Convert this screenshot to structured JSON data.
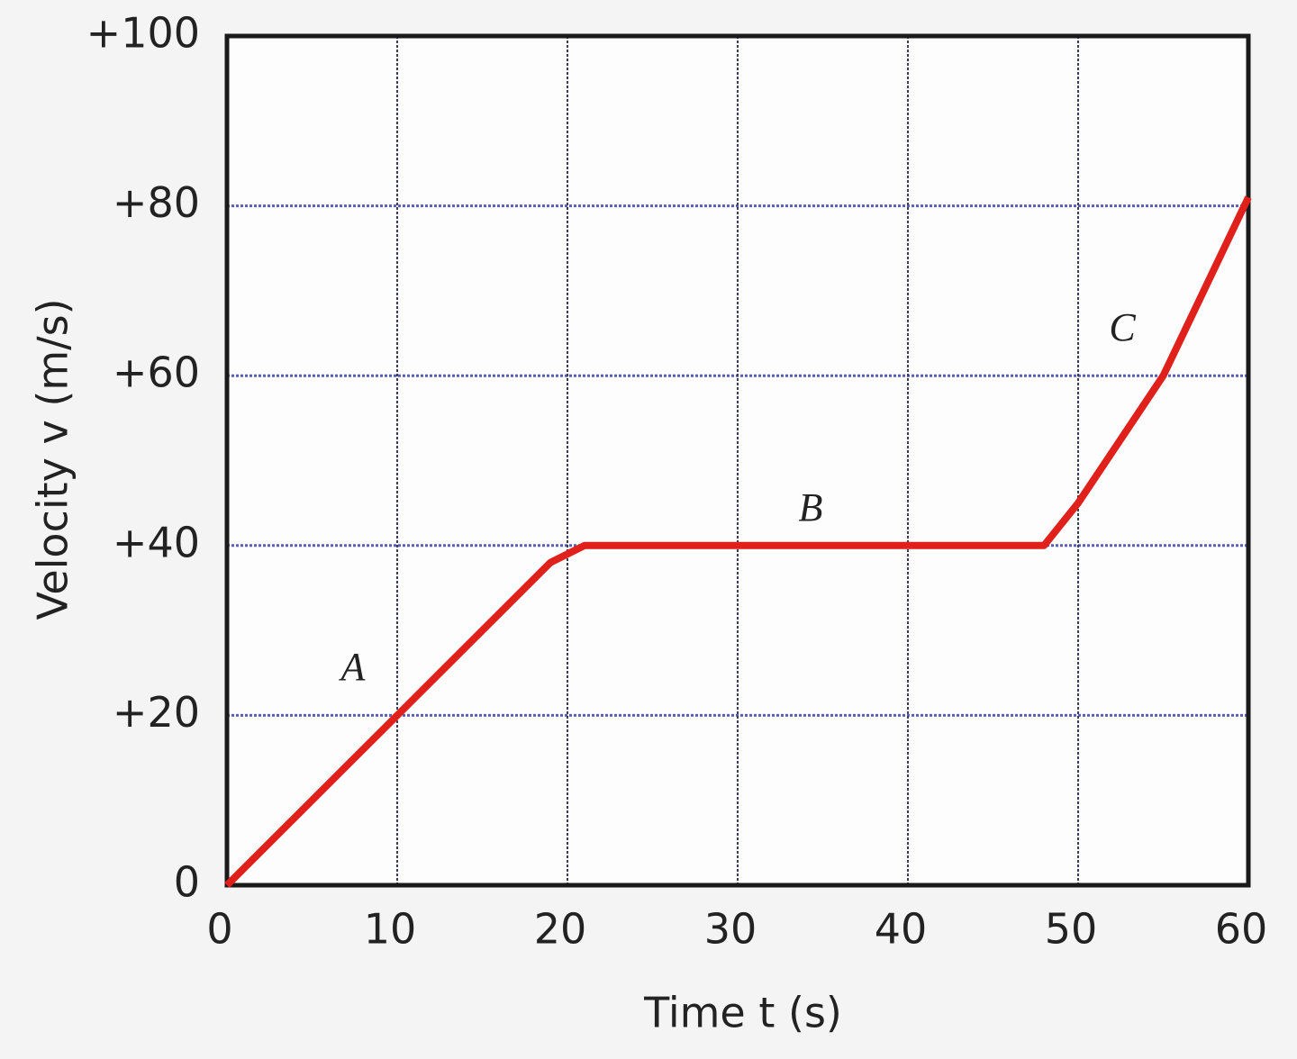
{
  "chart_data": {
    "type": "line",
    "x_label": "Time  t  (s)",
    "y_label": "Velocity  v  (m/s)",
    "x": [
      0,
      10,
      19,
      21,
      48,
      50,
      55,
      60
    ],
    "series": [
      {
        "color": "#e0201a",
        "values": [
          0,
          20,
          38,
          40,
          40,
          45,
          60,
          81
        ]
      }
    ],
    "xlim": [
      0,
      60
    ],
    "ylim": [
      0,
      100
    ],
    "xticks": [
      0,
      10,
      20,
      30,
      40,
      50,
      60
    ],
    "yticks": [
      0,
      {
        "value": 20,
        "label": "+20"
      },
      {
        "value": 40,
        "label": "+40"
      },
      {
        "value": 60,
        "label": "+60"
      },
      {
        "value": 80,
        "label": "+80"
      },
      {
        "value": 100,
        "label": "+100"
      }
    ],
    "grid": true,
    "grid_color": "#5a5fb5",
    "annotations": [
      "A",
      "B",
      "C"
    ]
  }
}
